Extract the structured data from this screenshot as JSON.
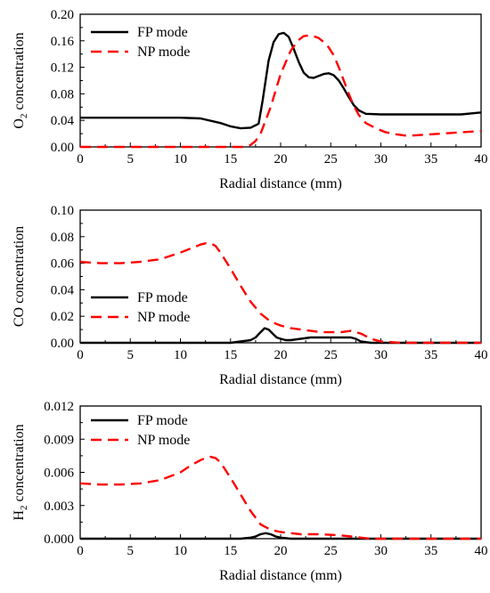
{
  "chart_data": [
    {
      "type": "line",
      "ylabel_main": "O",
      "ylabel_sub": "2",
      "ylabel_rest": " concentration",
      "xlabel": "Radial distance (mm)",
      "xlim": [
        0,
        40
      ],
      "ylim": [
        0,
        0.2
      ],
      "xticks": [
        "0",
        "5",
        "10",
        "15",
        "20",
        "25",
        "30",
        "35",
        "40"
      ],
      "yticks": [
        "0.00",
        "0.04",
        "0.08",
        "0.12",
        "0.16",
        "0.20"
      ],
      "legend_position": "top-left",
      "series": [
        {
          "name": "FP mode",
          "color": "#000000",
          "dash": "solid",
          "x": [
            0,
            5,
            10,
            12,
            14,
            15,
            16,
            17,
            17.8,
            18.2,
            18.8,
            19.3,
            19.8,
            20.3,
            20.8,
            21.3,
            21.8,
            22.3,
            22.8,
            23.3,
            23.8,
            24.3,
            24.8,
            25.3,
            25.8,
            26.3,
            26.8,
            27.3,
            27.8,
            28.5,
            30,
            32,
            35,
            38,
            40
          ],
          "y": [
            0.044,
            0.044,
            0.044,
            0.043,
            0.036,
            0.031,
            0.028,
            0.029,
            0.035,
            0.07,
            0.13,
            0.158,
            0.17,
            0.172,
            0.166,
            0.148,
            0.128,
            0.112,
            0.105,
            0.104,
            0.107,
            0.11,
            0.111,
            0.108,
            0.1,
            0.088,
            0.075,
            0.063,
            0.055,
            0.05,
            0.049,
            0.049,
            0.049,
            0.049,
            0.052
          ]
        },
        {
          "name": "NP mode",
          "color": "#ff0000",
          "dash": "dashed",
          "x": [
            0,
            5,
            10,
            15,
            16,
            16.5,
            17,
            17.5,
            18,
            19,
            20,
            21,
            21.7,
            22.3,
            22.8,
            23.3,
            23.8,
            24.3,
            24.8,
            25.3,
            25.8,
            26.3,
            26.8,
            27.3,
            27.8,
            28.5,
            29.5,
            30.5,
            31.5,
            32.5,
            33,
            34,
            36,
            38,
            40
          ],
          "y": [
            0.0,
            0.0,
            0.0,
            0.0,
            0.0,
            0.0,
            0.003,
            0.009,
            0.02,
            0.06,
            0.11,
            0.145,
            0.16,
            0.167,
            0.168,
            0.167,
            0.164,
            0.158,
            0.15,
            0.138,
            0.12,
            0.1,
            0.08,
            0.062,
            0.048,
            0.036,
            0.028,
            0.022,
            0.019,
            0.017,
            0.017,
            0.018,
            0.02,
            0.022,
            0.024
          ]
        }
      ]
    },
    {
      "type": "line",
      "ylabel_main": "CO concentration",
      "ylabel_sub": "",
      "ylabel_rest": "",
      "xlabel": "Radial distance (mm)",
      "xlim": [
        0,
        40
      ],
      "ylim": [
        0,
        0.1
      ],
      "xticks": [
        "0",
        "5",
        "10",
        "15",
        "20",
        "25",
        "30",
        "35",
        "40"
      ],
      "yticks": [
        "0.00",
        "0.02",
        "0.04",
        "0.06",
        "0.08",
        "0.10"
      ],
      "legend_position": "bottom-left",
      "series": [
        {
          "name": "FP mode",
          "color": "#000000",
          "dash": "solid",
          "x": [
            0,
            5,
            10,
            12,
            14,
            15,
            16,
            17,
            17.5,
            18,
            18.4,
            18.8,
            19.2,
            19.6,
            20,
            20.5,
            21,
            22,
            23,
            24,
            25,
            26,
            27,
            27.5,
            28,
            29,
            30,
            35,
            40
          ],
          "y": [
            0.0,
            0.0,
            0.0,
            0.0,
            0.0,
            0.0,
            0.001,
            0.002,
            0.004,
            0.008,
            0.011,
            0.01,
            0.007,
            0.004,
            0.003,
            0.002,
            0.002,
            0.003,
            0.004,
            0.004,
            0.004,
            0.004,
            0.004,
            0.003,
            0.001,
            0.0,
            0.0,
            0.0,
            0.0
          ]
        },
        {
          "name": "NP mode",
          "color": "#ff0000",
          "dash": "dashed",
          "x": [
            0,
            2,
            4,
            6,
            8,
            10,
            11,
            12,
            12.5,
            13,
            13.5,
            14,
            15,
            16,
            17,
            18,
            19,
            20,
            21,
            22,
            23,
            24,
            25,
            26,
            27,
            28,
            29,
            30,
            32,
            35,
            40
          ],
          "y": [
            0.061,
            0.06,
            0.06,
            0.061,
            0.063,
            0.068,
            0.071,
            0.074,
            0.075,
            0.075,
            0.073,
            0.068,
            0.056,
            0.043,
            0.031,
            0.022,
            0.016,
            0.013,
            0.011,
            0.01,
            0.009,
            0.008,
            0.008,
            0.008,
            0.009,
            0.007,
            0.003,
            0.001,
            0.0,
            0.0,
            0.0
          ]
        }
      ]
    },
    {
      "type": "line",
      "ylabel_main": "H",
      "ylabel_sub": "2",
      "ylabel_rest": " concentration",
      "xlabel": "Radial distance (mm)",
      "xlim": [
        0,
        40
      ],
      "ylim": [
        0,
        0.012
      ],
      "xticks": [
        "0",
        "5",
        "10",
        "15",
        "20",
        "25",
        "30",
        "35",
        "40"
      ],
      "yticks": [
        "0.000",
        "0.003",
        "0.006",
        "0.009",
        "0.012"
      ],
      "legend_position": "top-left",
      "series": [
        {
          "name": "FP mode",
          "color": "#000000",
          "dash": "solid",
          "x": [
            0,
            5,
            10,
            15,
            16,
            17,
            17.5,
            18,
            18.5,
            19,
            19.5,
            20,
            21,
            25,
            30,
            35,
            40
          ],
          "y": [
            0.0,
            0.0,
            0.0,
            0.0,
            0.0,
            0.0001,
            0.0002,
            0.0004,
            0.0005,
            0.0004,
            0.0002,
            0.0001,
            0.0,
            0.0,
            0.0,
            0.0,
            0.0
          ],
          "yscale_note": ""
        },
        {
          "name": "NP mode",
          "color": "#ff0000",
          "dash": "dashed",
          "x": [
            0,
            2,
            4,
            6,
            8,
            10,
            11,
            12,
            12.5,
            13,
            13.5,
            14,
            15,
            16,
            17,
            18,
            19,
            20,
            21,
            22,
            24,
            26,
            27,
            28,
            29,
            30,
            35,
            40
          ],
          "y": [
            0.005,
            0.0049,
            0.0049,
            0.005,
            0.0053,
            0.006,
            0.0066,
            0.0071,
            0.0073,
            0.0074,
            0.0073,
            0.0069,
            0.0055,
            0.004,
            0.0025,
            0.0013,
            0.0008,
            0.0006,
            0.0005,
            0.0004,
            0.0004,
            0.0003,
            0.0002,
            0.0001,
            0.0,
            0.0,
            0.0,
            0.0
          ]
        }
      ]
    }
  ]
}
